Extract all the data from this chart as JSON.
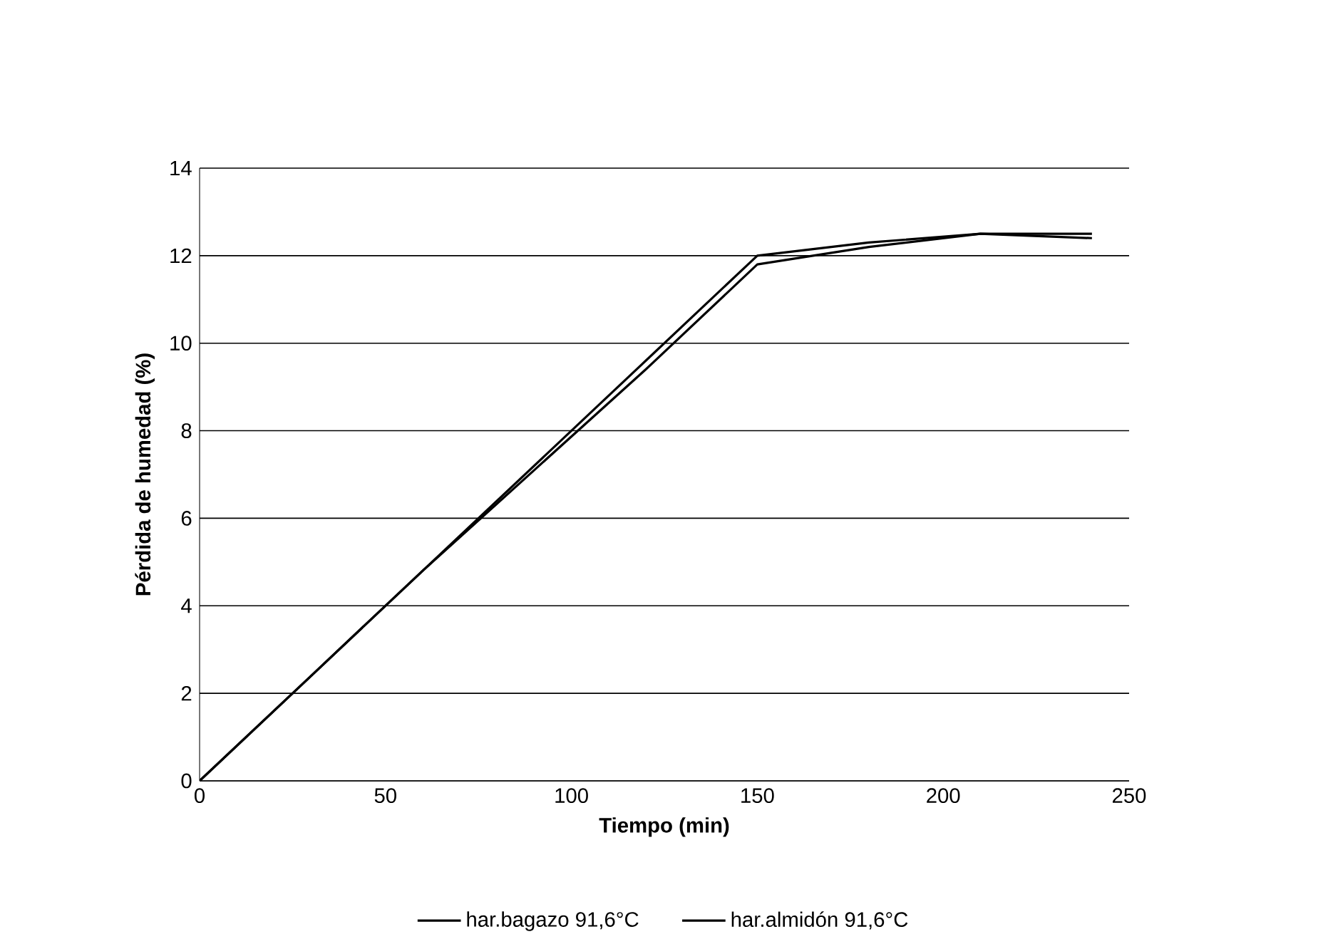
{
  "chart_data": {
    "type": "line",
    "xlabel": "Tiempo (min)",
    "ylabel": "Pérdida de humedad (%)",
    "x": [
      0,
      30,
      60,
      90,
      120,
      150,
      180,
      210,
      240
    ],
    "series": [
      {
        "name": "har.bagazo 91,6°C",
        "color": "#000000",
        "values": [
          0,
          2.4,
          4.8,
          7.2,
          9.6,
          12.0,
          12.3,
          12.5,
          12.5
        ]
      },
      {
        "name": "har.almidón 91,6°C",
        "color": "#000000",
        "values": [
          0,
          2.4,
          4.8,
          7.1,
          9.4,
          11.8,
          12.2,
          12.5,
          12.4
        ]
      }
    ],
    "xlim": [
      0,
      250
    ],
    "xticks": [
      0,
      50,
      100,
      150,
      200,
      250
    ],
    "ylim": [
      0,
      14
    ],
    "yticks": [
      0,
      2,
      4,
      6,
      8,
      10,
      12,
      14
    ],
    "grid": "y",
    "legend": "bottom",
    "marker": "none",
    "line_style": "solid"
  }
}
